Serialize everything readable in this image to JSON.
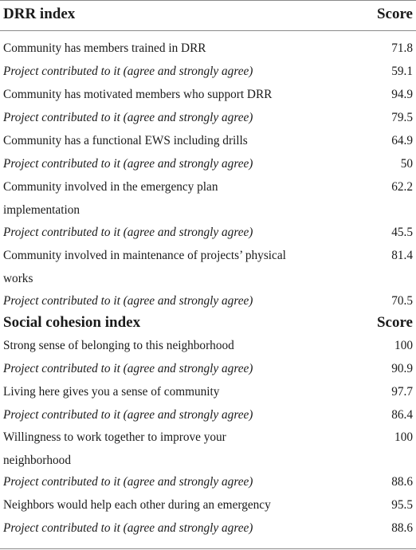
{
  "sections": [
    {
      "header": "DRR index",
      "score_header": "Score",
      "rows": [
        {
          "label": "Community has members trained in DRR",
          "score": "71.8",
          "italic": false
        },
        {
          "label": "Project contributed to it (agree and strongly agree)",
          "score": "59.1",
          "italic": true
        },
        {
          "label": "Community has motivated members who support DRR",
          "score": "94.9",
          "italic": false
        },
        {
          "label": "Project contributed to it (agree and strongly agree)",
          "score": "79.5",
          "italic": true
        },
        {
          "label": "Community has a functional EWS including drills",
          "score": "64.9",
          "italic": false
        },
        {
          "label": "Project contributed to it (agree and strongly agree)",
          "score": "50",
          "italic": true
        },
        {
          "label": "Community involved in the emergency plan implementation",
          "score": "62.2",
          "italic": false
        },
        {
          "label": "Project contributed to it (agree and strongly agree)",
          "score": "45.5",
          "italic": true
        },
        {
          "label": "Community involved in maintenance of projects’ physical works",
          "score": "81.4",
          "italic": false
        },
        {
          "label": "Project contributed to it (agree and strongly agree)",
          "score": "70.5",
          "italic": true
        }
      ]
    },
    {
      "header": "Social cohesion index",
      "score_header": "Score",
      "rows": [
        {
          "label": "Strong sense of belonging to this neighborhood",
          "score": "100",
          "italic": false
        },
        {
          "label": "Project contributed to it (agree and strongly agree)",
          "score": "90.9",
          "italic": true
        },
        {
          "label": "Living here gives you a sense of community",
          "score": "97.7",
          "italic": false
        },
        {
          "label": "Project contributed to it (agree and strongly agree)",
          "score": "86.4",
          "italic": true
        },
        {
          "label": "Willingness to work together to improve your neighborhood",
          "score": "100",
          "italic": false
        },
        {
          "label": "Project contributed to it (agree and strongly agree)",
          "score": "88.6",
          "italic": true
        },
        {
          "label": "Neighbors would help each other during an emergency",
          "score": "95.5",
          "italic": false
        },
        {
          "label": "Project contributed to it (agree and strongly agree)",
          "score": "88.6",
          "italic": true
        }
      ]
    }
  ]
}
